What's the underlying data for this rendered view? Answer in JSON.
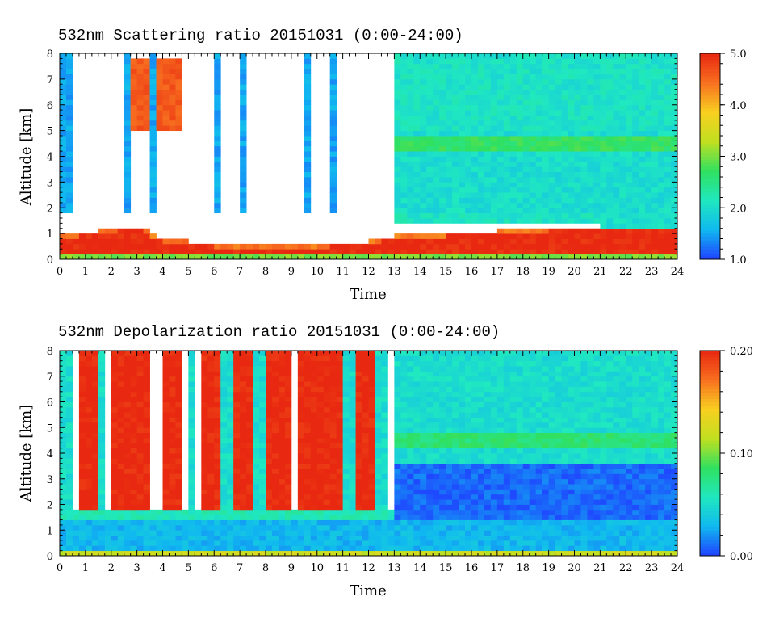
{
  "chart_data": [
    {
      "type": "heatmap",
      "title": "532nm Scattering ratio  20151031 (0:00-24:00)",
      "xlabel": "Time",
      "ylabel": "Altitude [km]",
      "xlim": [
        0,
        24
      ],
      "ylim": [
        0,
        8
      ],
      "x_ticks": [
        "0",
        "1",
        "2",
        "3",
        "4",
        "5",
        "6",
        "7",
        "8",
        "9",
        "10",
        "11",
        "12",
        "13",
        "14",
        "15",
        "16",
        "17",
        "18",
        "19",
        "20",
        "21",
        "22",
        "23",
        "24"
      ],
      "y_ticks": [
        "0",
        "1",
        "2",
        "3",
        "4",
        "5",
        "6",
        "7",
        "8"
      ],
      "colorbar": {
        "min": 1.0,
        "max": 5.0,
        "ticks": [
          "1.0",
          "2.0",
          "3.0",
          "4.0",
          "5.0"
        ]
      },
      "colormap": [
        "#2040ff",
        "#10b8f0",
        "#20e8c0",
        "#30e060",
        "#c0e020",
        "#f8d020",
        "#f87020",
        "#e82810"
      ],
      "features": {
        "boundary_layer_top_km": {
          "t": [
            0,
            3,
            4,
            6,
            9,
            12,
            13,
            21,
            24
          ],
          "z": [
            0.9,
            1.3,
            0.8,
            0.6,
            0.5,
            0.7,
            0.9,
            1.3,
            1.2
          ]
        },
        "aerosol_layer_value": 5.0,
        "background_above_13h": 2.0,
        "elevated_layer_km": [
          4.2,
          4.8
        ],
        "elevated_layer_value": 2.7
      }
    },
    {
      "type": "heatmap",
      "title": "532nm Depolarization ratio  20151031 (0:00-24:00)",
      "xlabel": "Time",
      "ylabel": "Altitude [km]",
      "xlim": [
        0,
        24
      ],
      "ylim": [
        0,
        8
      ],
      "x_ticks": [
        "0",
        "1",
        "2",
        "3",
        "4",
        "5",
        "6",
        "7",
        "8",
        "9",
        "10",
        "11",
        "12",
        "13",
        "14",
        "15",
        "16",
        "17",
        "18",
        "19",
        "20",
        "21",
        "22",
        "23",
        "24"
      ],
      "y_ticks": [
        "0",
        "1",
        "2",
        "3",
        "4",
        "5",
        "6",
        "7",
        "8"
      ],
      "colorbar": {
        "min": 0.0,
        "max": 0.2,
        "ticks": [
          "0.00",
          "0.10",
          "0.20"
        ]
      },
      "colormap": [
        "#2040ff",
        "#10b8f0",
        "#20e8c0",
        "#30e060",
        "#c0e020",
        "#f8d020",
        "#f87020",
        "#e82810"
      ],
      "features": {
        "boundary_layer_top_km": 1.5,
        "boundary_layer_value": 0.03,
        "background_above_13h": 0.05,
        "elevated_layer_km": [
          4.2,
          4.8
        ],
        "elevated_layer_value": 0.08,
        "high_depol_before_13h": 0.2
      }
    }
  ]
}
